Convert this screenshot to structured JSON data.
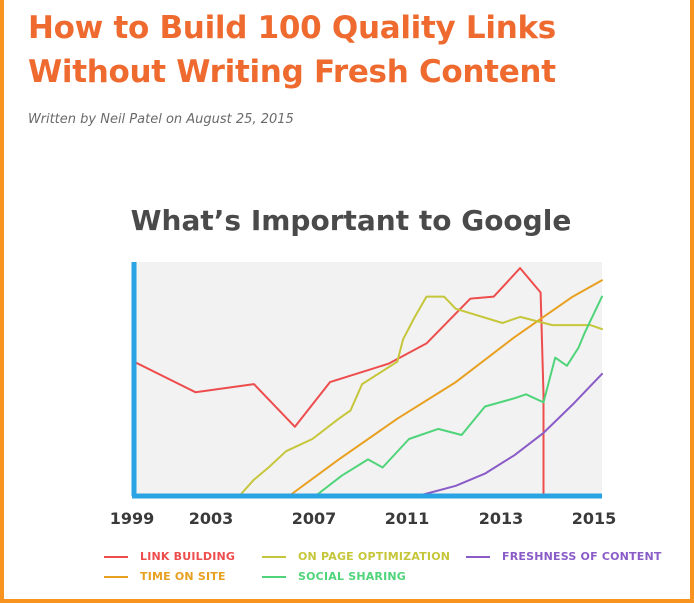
{
  "article": {
    "title": "How to Build 100 Quality Links Without Writing Fresh Content",
    "byline": "Written by Neil Patel on August 25, 2015"
  },
  "chart_data": {
    "type": "line",
    "title": "What’s Important to Google",
    "xlim": [
      1999,
      2015
    ],
    "ylim": [
      0,
      100
    ],
    "x_ticks": [
      "1999",
      "2003",
      "2007",
      "2011",
      "2013",
      "2015"
    ],
    "x_tick_values": [
      1999,
      2003,
      2007,
      2011,
      2013,
      2015
    ],
    "grid": false,
    "legend_position": "bottom",
    "axis_color": "#29a3e3",
    "background_color": "#f2f2f2",
    "series": [
      {
        "name": "LINK BUILDING",
        "color": "#ee4d4d",
        "x": [
          1999,
          2001.1,
          2003.1,
          2004.5,
          2005.7,
          2007.7,
          2009,
          2010.5,
          2011.3,
          2012.2,
          2012.9,
          2013,
          2013
        ],
        "y": [
          66,
          51,
          55,
          34,
          56,
          65,
          75,
          97,
          98,
          112,
          100,
          50,
          0
        ]
      },
      {
        "name": "TIME ON SITE",
        "color": "#e8a020",
        "x": [
          2004.3,
          2006,
          2008,
          2010,
          2012,
          2013,
          2014,
          2015
        ],
        "y": [
          0,
          18,
          38,
          56,
          78,
          88,
          98,
          106
        ]
      },
      {
        "name": "ON PAGE OPTIMIZATION",
        "color": "#c6c63a",
        "x": [
          2002.6,
          2003.1,
          2003.6,
          2004.2,
          2005.1,
          2006,
          2006.4,
          2006.8,
          2008,
          2008.2,
          2008.6,
          2009,
          2009.6,
          2010,
          2011.6,
          2012.2,
          2013.3,
          2014.6,
          2015
        ],
        "y": [
          0,
          8,
          14,
          22,
          28,
          38,
          42,
          55,
          66,
          77,
          88,
          98,
          98,
          92,
          85,
          88,
          84,
          84,
          82
        ]
      },
      {
        "name": "SOCIAL SHARING",
        "color": "#4fd47a",
        "x": [
          2005.2,
          2006.1,
          2007,
          2007.5,
          2008.4,
          2009.4,
          2010.2,
          2011,
          2012,
          2012.4,
          2013,
          2013.4,
          2013.8,
          2014.2,
          2014.4,
          2015
        ],
        "y": [
          0,
          10,
          18,
          14,
          28,
          33,
          30,
          44,
          48,
          50,
          46,
          68,
          64,
          73,
          80,
          98
        ]
      },
      {
        "name": "FRESHNESS OF CONTENT",
        "color": "#8a5cc7",
        "x": [
          2008.7,
          2010,
          2011,
          2012,
          2013,
          2014,
          2015
        ],
        "y": [
          0,
          5,
          11,
          20,
          31,
          45,
          60
        ]
      }
    ]
  },
  "legend": [
    {
      "label": "LINK BUILDING",
      "color": "#ee4d4d"
    },
    {
      "label": "ON PAGE OPTIMIZATION",
      "color": "#c6c63a"
    },
    {
      "label": "FRESHNESS OF CONTENT",
      "color": "#8a5cc7"
    },
    {
      "label": "TIME ON SITE",
      "color": "#e8a020"
    },
    {
      "label": "SOCIAL SHARING",
      "color": "#4fd47a"
    }
  ]
}
